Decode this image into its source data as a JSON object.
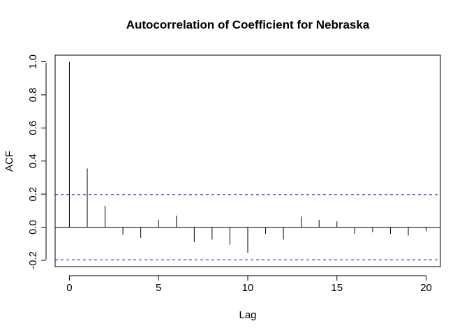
{
  "chart_data": {
    "type": "bar",
    "title": "Autocorrelation of Coefficient for Nebraska",
    "xlabel": "Lag",
    "ylabel": "ACF",
    "xlim": [
      -0.8,
      20.8
    ],
    "ylim": [
      -0.238,
      1.04
    ],
    "x_ticks": [
      "0",
      "5",
      "10",
      "15",
      "20"
    ],
    "y_ticks": [
      "-0.2",
      "0.0",
      "0.2",
      "0.4",
      "0.6",
      "0.8",
      "1.0"
    ],
    "lags": [
      0,
      1,
      2,
      3,
      4,
      5,
      6,
      7,
      8,
      9,
      10,
      11,
      12,
      13,
      14,
      15,
      16,
      17,
      18,
      19,
      20
    ],
    "acf": [
      1.0,
      0.355,
      0.13,
      -0.045,
      -0.065,
      0.045,
      0.07,
      -0.09,
      -0.075,
      -0.105,
      -0.155,
      -0.04,
      -0.075,
      0.065,
      0.045,
      0.035,
      -0.04,
      -0.03,
      -0.04,
      -0.05,
      -0.025
    ],
    "confidence_bounds": [
      0.197,
      -0.197
    ],
    "colors": {
      "bars": "#000000",
      "confidence": "#0000ff"
    },
    "grid": false
  }
}
